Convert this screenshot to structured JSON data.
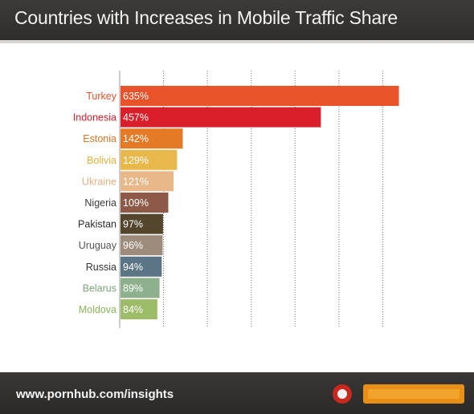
{
  "header": {
    "title": "Countries with Increases in Mobile Traffic Share"
  },
  "footer": {
    "url": "www.pornhub.com/insights"
  },
  "chart_data": {
    "type": "bar",
    "orientation": "horizontal",
    "title": "Countries with Increases in Mobile Traffic Share",
    "xlabel": "",
    "ylabel": "",
    "grid": true,
    "xlim": [
      0,
      700
    ],
    "categories": [
      "Turkey",
      "Indonesia",
      "Estonia",
      "Bolivia",
      "Ukraine",
      "Nigeria",
      "Pakistan",
      "Uruguay",
      "Russia",
      "Belarus",
      "Moldova"
    ],
    "values": [
      635,
      457,
      142,
      129,
      121,
      109,
      97,
      96,
      94,
      89,
      84
    ],
    "value_labels": [
      "635%",
      "457%",
      "142%",
      "129%",
      "121%",
      "109%",
      "97%",
      "96%",
      "94%",
      "89%",
      "84%"
    ],
    "colors": [
      "#e8532a",
      "#d9202a",
      "#e47a26",
      "#e9b84a",
      "#e8b889",
      "#8e5a47",
      "#54452d",
      "#9d8c7b",
      "#5b7585",
      "#8fb08d",
      "#9cbc6a"
    ],
    "label_colors": [
      "#e0522a",
      "#cf1e2a",
      "#d87424",
      "#e2b040",
      "#e4b080",
      "#3a3a3a",
      "#2a2a2a",
      "#555555",
      "#333333",
      "#7aa47a",
      "#8ab45a"
    ]
  }
}
